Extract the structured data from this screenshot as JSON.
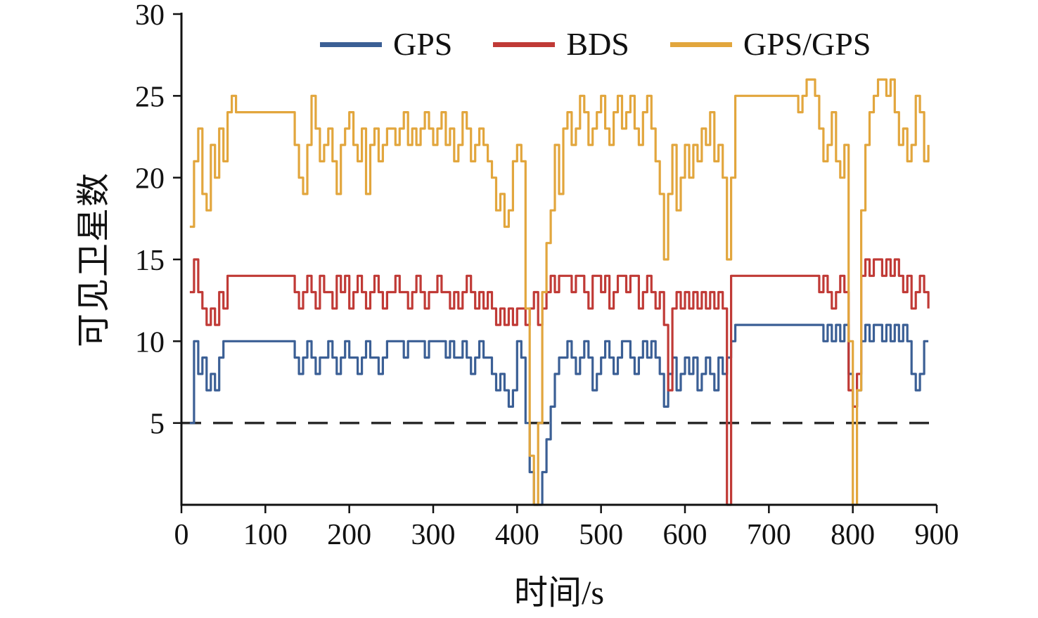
{
  "chart_data": {
    "type": "line",
    "title": "",
    "xlabel": "时间/s",
    "ylabel": "可见卫星数",
    "xlim": [
      0,
      900
    ],
    "ylim": [
      0,
      30
    ],
    "xticks": [
      0,
      100,
      200,
      300,
      400,
      500,
      600,
      700,
      800,
      900
    ],
    "yticks": [
      5,
      10,
      15,
      20,
      25,
      30
    ],
    "grid": false,
    "legend_position": "top-center-inside",
    "line_style": "steps",
    "threshold": {
      "y": 5,
      "style": "dashed",
      "color": "#2b2b2b"
    },
    "series": [
      {
        "name": "GPS",
        "color": "#3b5f95",
        "x_start": 10,
        "x_step": 5,
        "values": [
          5,
          10,
          8,
          9,
          7,
          8,
          7,
          9,
          10,
          10,
          10,
          10,
          10,
          10,
          10,
          10,
          10,
          10,
          10,
          10,
          10,
          10,
          10,
          10,
          10,
          9,
          8,
          9,
          10,
          9,
          8,
          9,
          9,
          10,
          9,
          8,
          9,
          10,
          9,
          9,
          8,
          9,
          10,
          9,
          9,
          8,
          9,
          10,
          10,
          10,
          10,
          9,
          10,
          10,
          10,
          10,
          9,
          10,
          10,
          10,
          10,
          9,
          10,
          9,
          9,
          10,
          9,
          8,
          9,
          10,
          9,
          9,
          8,
          7,
          8,
          7,
          6,
          7,
          10,
          9,
          5,
          2,
          0,
          0,
          2,
          4,
          6,
          8,
          9,
          9,
          10,
          9,
          8,
          9,
          10,
          9,
          7,
          8,
          9,
          10,
          9,
          8,
          9,
          10,
          10,
          9,
          8,
          9,
          10,
          9,
          10,
          9,
          8,
          6,
          8,
          9,
          7,
          8,
          9,
          8,
          9,
          7,
          8,
          9,
          8,
          7,
          9,
          8,
          9,
          10,
          11,
          11,
          11,
          11,
          11,
          11,
          11,
          11,
          11,
          11,
          11,
          11,
          11,
          11,
          11,
          11,
          11,
          11,
          11,
          11,
          11,
          10,
          11,
          10,
          11,
          10,
          11,
          8,
          6,
          7,
          10,
          11,
          10,
          11,
          11,
          10,
          11,
          10,
          11,
          10,
          11,
          10,
          8,
          7,
          8,
          10,
          10
        ]
      },
      {
        "name": "BDS",
        "color": "#c03a36",
        "x_start": 10,
        "x_step": 5,
        "values": [
          13,
          15,
          13,
          12,
          11,
          12,
          11,
          13,
          12,
          14,
          14,
          14,
          14,
          14,
          14,
          14,
          14,
          14,
          14,
          14,
          14,
          14,
          14,
          14,
          14,
          13,
          12,
          13,
          14,
          13,
          12,
          14,
          13,
          13,
          12,
          14,
          13,
          14,
          12,
          13,
          14,
          13,
          12,
          13,
          14,
          13,
          12,
          13,
          13,
          14,
          13,
          13,
          12,
          13,
          14,
          13,
          12,
          13,
          13,
          14,
          13,
          13,
          12,
          13,
          12,
          13,
          14,
          13,
          12,
          13,
          12,
          13,
          12,
          11,
          12,
          11,
          12,
          11,
          12,
          12,
          11,
          12,
          13,
          11,
          12,
          13,
          14,
          13,
          14,
          14,
          14,
          13,
          14,
          14,
          13,
          12,
          14,
          14,
          13,
          14,
          12,
          13,
          14,
          14,
          13,
          14,
          14,
          12,
          13,
          14,
          13,
          12,
          13,
          11,
          7,
          12,
          13,
          12,
          13,
          12,
          13,
          12,
          13,
          12,
          13,
          12,
          13,
          12,
          0,
          14,
          14,
          14,
          14,
          14,
          14,
          14,
          14,
          14,
          14,
          14,
          14,
          14,
          14,
          14,
          14,
          14,
          14,
          14,
          14,
          14,
          13,
          14,
          13,
          12,
          13,
          14,
          13,
          7,
          6,
          8,
          14,
          15,
          14,
          15,
          15,
          14,
          15,
          14,
          15,
          14,
          13,
          14,
          12,
          13,
          14,
          13,
          12
        ]
      },
      {
        "name": "GPS/GPS",
        "color": "#e2a63d",
        "x_start": 10,
        "x_step": 5,
        "values": [
          17,
          21,
          23,
          19,
          18,
          22,
          20,
          23,
          21,
          24,
          25,
          24,
          24,
          24,
          24,
          24,
          24,
          24,
          24,
          24,
          24,
          24,
          24,
          24,
          24,
          22,
          20,
          19,
          22,
          25,
          23,
          21,
          22,
          23,
          21,
          19,
          22,
          23,
          24,
          22,
          21,
          23,
          19,
          22,
          23,
          21,
          22,
          23,
          23,
          22,
          23,
          24,
          22,
          23,
          22,
          23,
          24,
          23,
          22,
          23,
          24,
          22,
          23,
          21,
          22,
          24,
          23,
          21,
          22,
          23,
          22,
          21,
          20,
          18,
          19,
          17,
          18,
          21,
          22,
          21,
          12,
          3,
          0,
          5,
          13,
          16,
          18,
          22,
          19,
          23,
          24,
          22,
          23,
          25,
          24,
          22,
          23,
          24,
          25,
          23,
          22,
          24,
          25,
          23,
          24,
          25,
          23,
          22,
          24,
          25,
          23,
          21,
          19,
          15,
          19,
          22,
          18,
          20,
          22,
          20,
          22,
          21,
          23,
          22,
          24,
          21,
          22,
          20,
          15,
          20,
          25,
          25,
          25,
          25,
          25,
          25,
          25,
          25,
          25,
          25,
          25,
          25,
          25,
          25,
          25,
          24,
          25,
          26,
          26,
          25,
          23,
          21,
          22,
          24,
          21,
          20,
          22,
          10,
          0,
          7,
          18,
          22,
          24,
          25,
          26,
          26,
          25,
          26,
          24,
          22,
          23,
          21,
          22,
          25,
          24,
          21,
          22
        ]
      }
    ]
  }
}
